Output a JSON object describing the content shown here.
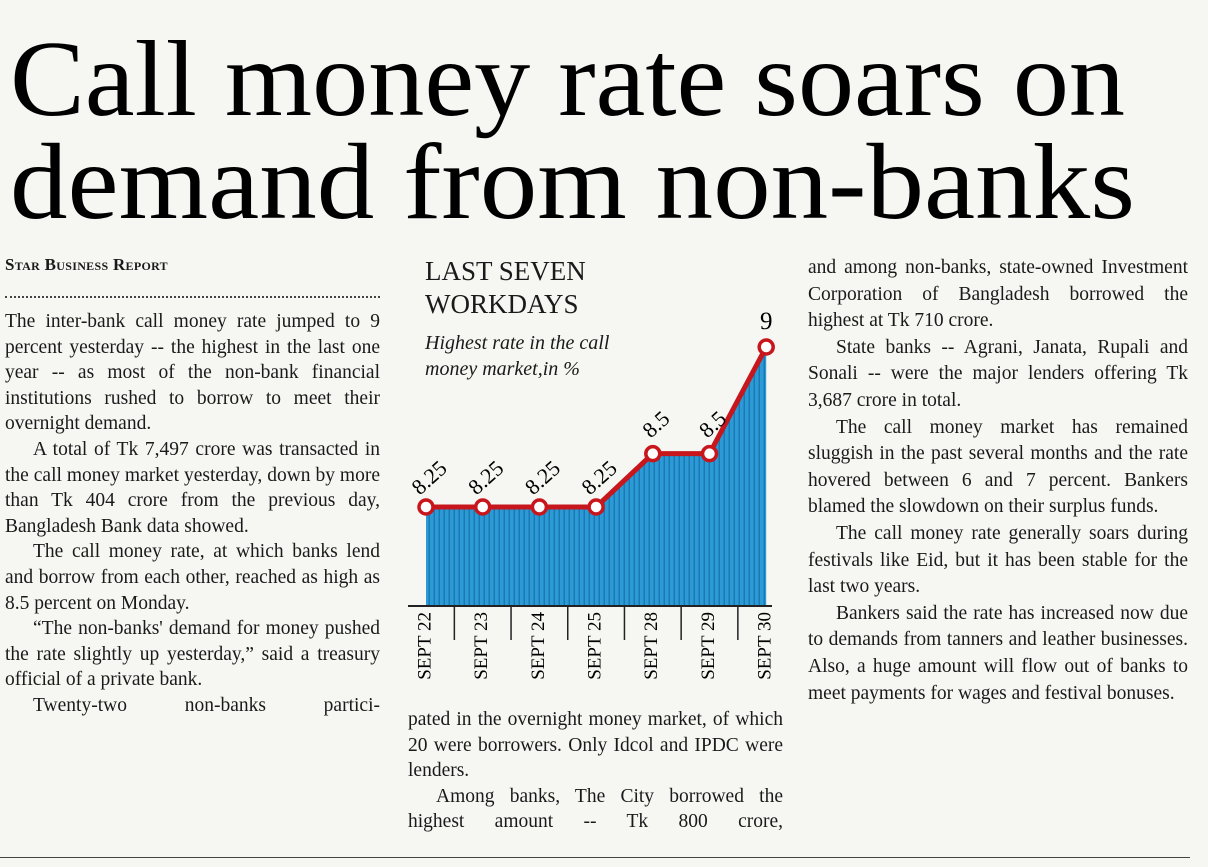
{
  "headline": [
    "Call money rate soars on",
    "demand from non-banks"
  ],
  "byline": "Star Business Report",
  "columns": [
    {
      "paragraphs": [
        "The inter-bank call money rate jumped to 9 percent yesterday -- the highest in the last one year -- as most of the non-bank financial institutions rushed to borrow to meet their overnight demand.",
        "A total of Tk 7,497 crore was transacted in the call money market yesterday, down by more than Tk 404 crore from the previous day, Bangladesh Bank data showed.",
        "The call money rate, at which banks lend and borrow from each other, reached as high as 8.5 percent on Monday.",
        "“The non-banks' demand for money pushed the rate slightly up yesterday,” said a treasury official of a private bank.",
        "Twenty-two non-banks partici-"
      ]
    },
    {
      "paragraphs": [
        "pated in the overnight money market, of which 20 were borrowers. Only Idcol and IPDC were lenders.",
        "Among banks, The City borrowed the highest amount -- Tk 800 crore,"
      ]
    },
    {
      "paragraphs": [
        "and among non-banks, state-owned Investment Corporation of Bangladesh borrowed the highest at Tk 710 crore.",
        "State banks -- Agrani, Janata, Rupali and Sonali -- were the major lenders offering Tk 3,687 crore in total.",
        "The call money market has remained sluggish in the past several months and the rate hovered between 6 and 7 percent. Bankers blamed the slowdown on their surplus funds.",
        "The call money rate generally soars during festivals like Eid, but it has been stable for the last two years.",
        "Bankers said the rate has increased now due to demands from tanners and leather businesses. Also, a huge amount will flow out of banks to meet payments for wages and festival bonuses."
      ]
    }
  ],
  "chart_data": {
    "type": "area",
    "title": "LAST SEVEN WORKDAYS",
    "subtitle": "Highest rate in the call money market,in %",
    "categories": [
      "SEPT 22",
      "SEPT 23",
      "SEPT 24",
      "SEPT 25",
      "SEPT 28",
      "SEPT 29",
      "SEPT 30"
    ],
    "values": [
      8.25,
      8.25,
      8.25,
      8.25,
      8.5,
      8.5,
      9
    ],
    "color": "#2b9ad6",
    "line_color": "#c8161d"
  }
}
